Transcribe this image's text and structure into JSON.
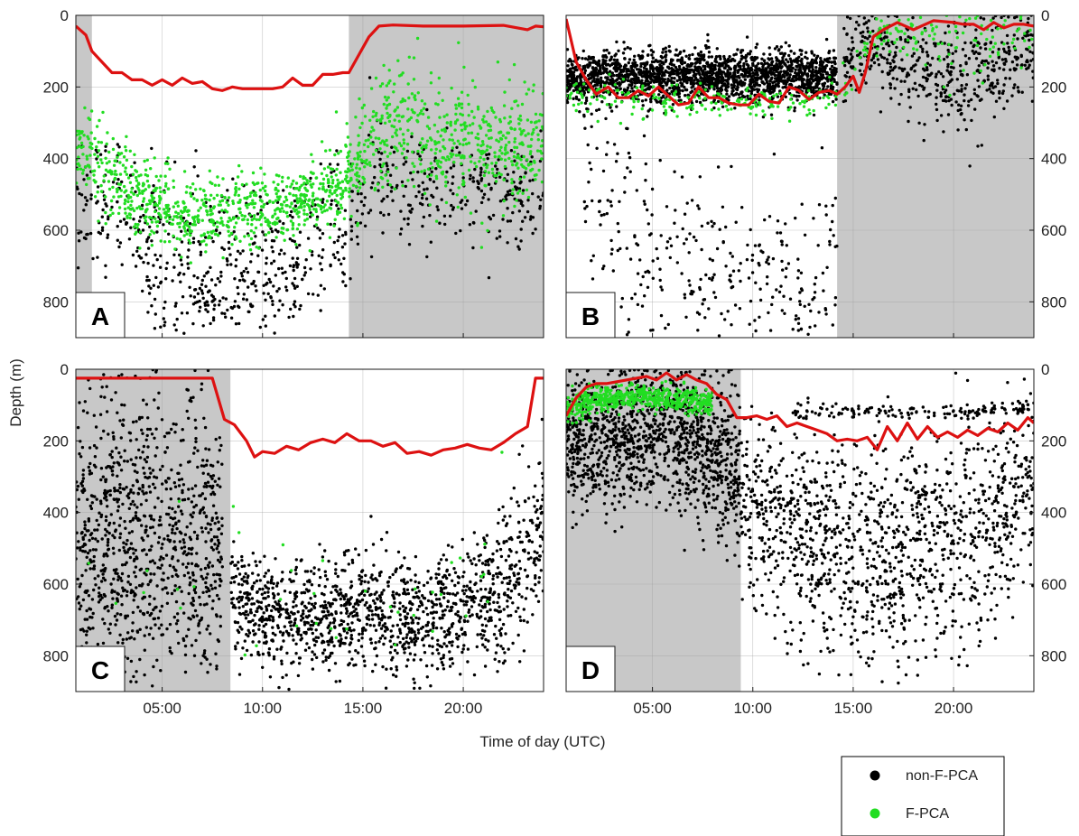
{
  "chart_data": {
    "type": "scatter",
    "title": "",
    "xlabel": "Time of day (UTC)",
    "ylabel": "Depth (m)",
    "xlim": [
      0.7,
      24.0
    ],
    "ylim": [
      900,
      0
    ],
    "x_ticks": [
      5,
      10,
      15,
      20
    ],
    "x_tick_labels": [
      "05:00",
      "10:00",
      "15:00",
      "20:00"
    ],
    "y_ticks": [
      0,
      200,
      400,
      600,
      800
    ],
    "y_tick_labels": [
      "0",
      "200",
      "400",
      "600",
      "800"
    ],
    "grid": true,
    "legend": {
      "position": "bottom-right",
      "entries": [
        {
          "label": "non-F-PCA",
          "color": "#000000"
        },
        {
          "label": "F-PCA",
          "color": "#22dd22"
        }
      ]
    },
    "colors": {
      "shade": "#c8c8c8",
      "line": "#dd1111",
      "nonfpca": "#000000",
      "fpca": "#22dd22"
    },
    "panels": [
      {
        "label": "A",
        "shaded": [
          [
            0.7,
            1.5
          ],
          [
            14.3,
            24.0
          ]
        ],
        "red_line": {
          "x": [
            0.7,
            1.2,
            1.5,
            2,
            2.5,
            3,
            3.5,
            4,
            4.5,
            5,
            5.5,
            6,
            6.5,
            7,
            7.5,
            8,
            8.5,
            9,
            9.5,
            10,
            10.5,
            11,
            11.5,
            12,
            12.5,
            13,
            13.5,
            14,
            14.3,
            14.8,
            15.3,
            15.8,
            16.5,
            18,
            20,
            22,
            23.2,
            23.6,
            24
          ],
          "y": [
            30,
            55,
            100,
            130,
            160,
            160,
            180,
            180,
            195,
            180,
            195,
            175,
            190,
            185,
            205,
            210,
            200,
            205,
            205,
            205,
            205,
            200,
            175,
            195,
            195,
            165,
            165,
            160,
            160,
            110,
            60,
            30,
            27,
            30,
            30,
            28,
            40,
            30,
            32
          ]
        },
        "clouds": [
          {
            "cls": "nonfpca",
            "n": 700,
            "seed": 11,
            "pts": [
              [
                0.7,
                480,
                90
              ],
              [
                3,
                560,
                90
              ],
              [
                6,
                640,
                110
              ],
              [
                9,
                690,
                110
              ],
              [
                12,
                650,
                110
              ],
              [
                14.3,
                560,
                110
              ],
              [
                15.5,
                480,
                80
              ],
              [
                18,
                470,
                70
              ],
              [
                21,
                490,
                70
              ],
              [
                24,
                500,
                70
              ]
            ]
          },
          {
            "cls": "nonfpca",
            "n": 130,
            "seed": 12,
            "pts": [
              [
                4,
                780,
                40
              ],
              [
                8,
                790,
                40
              ],
              [
                12,
                760,
                40
              ]
            ]
          },
          {
            "cls": "fpca",
            "n": 1400,
            "seed": 13,
            "pts": [
              [
                0.7,
                360,
                60
              ],
              [
                2,
                430,
                60
              ],
              [
                4,
                510,
                55
              ],
              [
                6,
                560,
                55
              ],
              [
                8,
                560,
                50
              ],
              [
                10,
                545,
                50
              ],
              [
                12,
                520,
                50
              ],
              [
                13.5,
                480,
                55
              ],
              [
                14.5,
                420,
                60
              ],
              [
                15.5,
                330,
                80
              ],
              [
                17,
                310,
                90
              ],
              [
                19,
                360,
                80
              ],
              [
                21,
                380,
                80
              ],
              [
                24,
                360,
                80
              ]
            ]
          }
        ]
      },
      {
        "label": "B",
        "shaded": [
          [
            14.2,
            24.0
          ]
        ],
        "red_line": {
          "x": [
            0.7,
            1.2,
            1.7,
            2.2,
            2.8,
            3.3,
            3.8,
            4.3,
            4.8,
            5.3,
            5.8,
            6.3,
            6.8,
            7.3,
            7.8,
            8.3,
            8.8,
            9.3,
            9.8,
            10.3,
            10.8,
            11.3,
            11.8,
            12.3,
            12.8,
            13.3,
            13.8,
            14.2,
            14.6,
            15.0,
            15.3,
            15.6,
            16.0,
            16.5,
            17.2,
            18,
            19,
            20,
            20.5,
            21,
            21.5,
            22,
            22.5,
            23,
            23.5,
            24
          ],
          "y": [
            10,
            130,
            180,
            220,
            200,
            230,
            230,
            210,
            225,
            200,
            225,
            250,
            245,
            200,
            230,
            230,
            245,
            250,
            250,
            220,
            240,
            245,
            200,
            210,
            235,
            215,
            210,
            220,
            200,
            170,
            215,
            160,
            60,
            40,
            20,
            40,
            15,
            20,
            25,
            25,
            40,
            20,
            35,
            25,
            25,
            30
          ]
        },
        "clouds": [
          {
            "cls": "nonfpca",
            "n": 2000,
            "seed": 21,
            "pts": [
              [
                0.7,
                180,
                30
              ],
              [
                3,
                170,
                35
              ],
              [
                6,
                170,
                35
              ],
              [
                9,
                170,
                35
              ],
              [
                12,
                170,
                35
              ],
              [
                14.2,
                170,
                35
              ]
            ]
          },
          {
            "cls": "nonfpca",
            "n": 500,
            "seed": 22,
            "pts": [
              [
                14.5,
                140,
                60
              ],
              [
                16,
                80,
                50
              ],
              [
                18,
                150,
                70
              ],
              [
                20,
                200,
                70
              ],
              [
                22,
                140,
                70
              ],
              [
                24,
                100,
                60
              ]
            ]
          },
          {
            "cls": "nonfpca",
            "n": 350,
            "seed": 23,
            "pts": [
              [
                1.5,
                480,
                160
              ],
              [
                4,
                620,
                170
              ],
              [
                7,
                700,
                140
              ],
              [
                10,
                740,
                120
              ],
              [
                13,
                740,
                120
              ],
              [
                14.2,
                600,
                200
              ]
            ]
          },
          {
            "cls": "fpca",
            "n": 350,
            "seed": 24,
            "pts": [
              [
                0.7,
                220,
                15
              ],
              [
                3,
                230,
                25
              ],
              [
                6,
                240,
                25
              ],
              [
                9,
                240,
                20
              ],
              [
                12,
                240,
                20
              ],
              [
                14.2,
                230,
                20
              ],
              [
                16,
                60,
                30
              ],
              [
                18,
                40,
                25
              ],
              [
                20,
                90,
                70
              ],
              [
                22,
                60,
                40
              ],
              [
                24,
                70,
                40
              ]
            ]
          }
        ]
      },
      {
        "label": "C",
        "shaded": [
          [
            0.7,
            8.4
          ]
        ],
        "red_line": {
          "x": [
            0.7,
            7.5,
            8.1,
            8.6,
            9.2,
            9.6,
            10,
            10.6,
            11.2,
            11.8,
            12.4,
            13,
            13.6,
            14.2,
            14.8,
            15.4,
            16,
            16.6,
            17.2,
            17.8,
            18.4,
            19,
            19.6,
            20.2,
            20.8,
            21.4,
            22,
            22.6,
            23.2,
            23.6,
            24
          ],
          "y": [
            25,
            25,
            140,
            155,
            200,
            245,
            230,
            235,
            215,
            225,
            205,
            195,
            205,
            180,
            200,
            200,
            215,
            205,
            235,
            230,
            240,
            225,
            220,
            210,
            220,
            225,
            205,
            180,
            160,
            25,
            25
          ]
        },
        "clouds": [
          {
            "cls": "nonfpca",
            "n": 1000,
            "seed": 31,
            "pts": [
              [
                0.7,
                500,
                200
              ],
              [
                3,
                480,
                230
              ],
              [
                5.5,
                480,
                230
              ],
              [
                8,
                520,
                180
              ]
            ]
          },
          {
            "cls": "nonfpca",
            "n": 1400,
            "seed": 32,
            "pts": [
              [
                8.4,
                620,
                70
              ],
              [
                10,
                680,
                70
              ],
              [
                12,
                690,
                80
              ],
              [
                15,
                680,
                80
              ],
              [
                18,
                700,
                80
              ],
              [
                21,
                650,
                90
              ],
              [
                23,
                560,
                120
              ],
              [
                24,
                420,
                140
              ]
            ]
          },
          {
            "cls": "fpca",
            "n": 40,
            "seed": 33,
            "pts": [
              [
                1,
                400,
                250
              ],
              [
                5,
                500,
                250
              ],
              [
                10,
                680,
                80
              ],
              [
                16,
                660,
                80
              ],
              [
                22,
                560,
                150
              ]
            ]
          }
        ]
      },
      {
        "label": "D",
        "shaded": [
          [
            0.7,
            9.4
          ]
        ],
        "red_line": {
          "x": [
            0.7,
            1.2,
            1.7,
            2.2,
            2.7,
            3.2,
            3.7,
            4.2,
            4.7,
            5.2,
            5.7,
            6.2,
            6.7,
            7.2,
            7.7,
            8.2,
            8.7,
            9.2,
            9.7,
            10.2,
            10.7,
            11.2,
            11.7,
            12.2,
            12.7,
            13.2,
            13.7,
            14.2,
            14.7,
            15.2,
            15.7,
            16.2,
            16.7,
            17.2,
            17.7,
            18.2,
            18.7,
            19.2,
            19.7,
            20.2,
            20.7,
            21.2,
            21.7,
            22.2,
            22.7,
            23.2,
            23.7,
            24
          ],
          "y": [
            130,
            80,
            50,
            40,
            40,
            35,
            30,
            25,
            20,
            30,
            10,
            30,
            15,
            30,
            40,
            70,
            85,
            135,
            135,
            130,
            140,
            130,
            160,
            150,
            160,
            170,
            180,
            200,
            195,
            200,
            190,
            225,
            160,
            200,
            150,
            195,
            160,
            190,
            175,
            190,
            170,
            185,
            165,
            175,
            150,
            170,
            135,
            150
          ]
        },
        "clouds": [
          {
            "cls": "nonfpca",
            "n": 1300,
            "seed": 41,
            "pts": [
              [
                0.7,
                200,
                90
              ],
              [
                2,
                200,
                100
              ],
              [
                4,
                180,
                100
              ],
              [
                6,
                180,
                100
              ],
              [
                8,
                230,
                110
              ],
              [
                9.4,
                300,
                110
              ]
            ]
          },
          {
            "cls": "nonfpca",
            "n": 1300,
            "seed": 42,
            "pts": [
              [
                9.4,
                380,
                120
              ],
              [
                11,
                420,
                140
              ],
              [
                13,
                480,
                160
              ],
              [
                15,
                500,
                160
              ],
              [
                17,
                520,
                160
              ],
              [
                19,
                500,
                160
              ],
              [
                21,
                460,
                160
              ],
              [
                23,
                380,
                150
              ],
              [
                24,
                320,
                130
              ]
            ]
          },
          {
            "cls": "nonfpca",
            "n": 150,
            "seed": 43,
            "pts": [
              [
                12,
                120,
                10
              ],
              [
                15,
                115,
                10
              ],
              [
                18,
                118,
                10
              ],
              [
                21,
                120,
                10
              ],
              [
                24,
                110,
                10
              ]
            ]
          },
          {
            "cls": "fpca",
            "n": 600,
            "seed": 44,
            "pts": [
              [
                0.7,
                110,
                18
              ],
              [
                2,
                85,
                18
              ],
              [
                4,
                75,
                18
              ],
              [
                6,
                80,
                18
              ],
              [
                8,
                95,
                18
              ]
            ]
          }
        ]
      }
    ]
  }
}
